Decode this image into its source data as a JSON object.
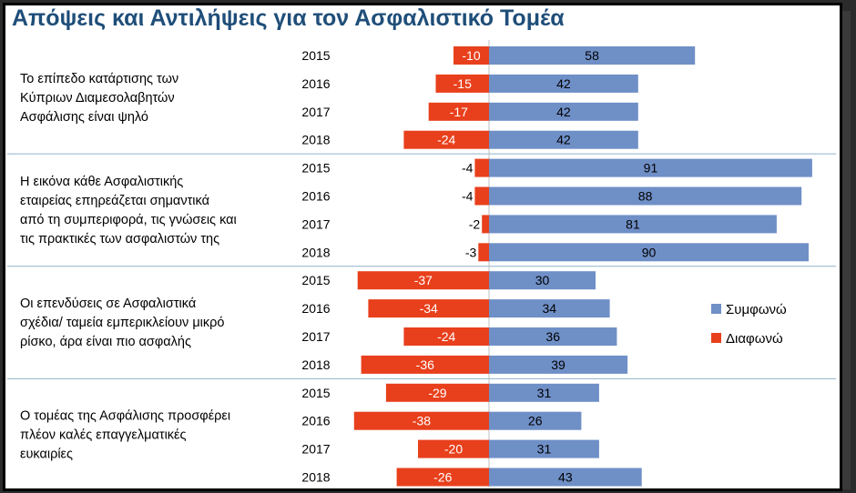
{
  "title": "Απόψεις και Αντιλήψεις για τον Ασφαλιστικό Τομέα",
  "colors": {
    "agree": "#6f8fc7",
    "disagree": "#e8401c",
    "title": "#1f4e79",
    "divider": "#8fb0c9"
  },
  "legend": {
    "agree": "Συμφωνώ",
    "disagree": "Διαφωνώ"
  },
  "chart_data": {
    "type": "bar",
    "orientation": "horizontal-diverging",
    "title": "Απόψεις και Αντιλήψεις για τον Ασφαλιστικό Τομέα",
    "series_names": [
      "Συμφωνώ",
      "Διαφωνώ"
    ],
    "legend_position": "right",
    "xlim": [
      -40,
      100
    ],
    "groups": [
      {
        "question": [
          "Το επίπεδο κατάρτισης των",
          "Κύπριων Διαμεσολαβητών",
          "Ασφάλισης είναι ψηλό"
        ],
        "rows": [
          {
            "year": "2015",
            "agree": 58,
            "disagree": -10
          },
          {
            "year": "2016",
            "agree": 42,
            "disagree": -15
          },
          {
            "year": "2017",
            "agree": 42,
            "disagree": -17
          },
          {
            "year": "2018",
            "agree": 42,
            "disagree": -24
          }
        ]
      },
      {
        "question": [
          "Η εικόνα κάθε Ασφαλιστικής",
          "εταιρείας επηρεάζεται σημαντικά",
          "από τη συμπεριφορά, τις γνώσεις και",
          "τις πρακτικές των ασφαλιστών της"
        ],
        "rows": [
          {
            "year": "2015",
            "agree": 91,
            "disagree": -4
          },
          {
            "year": "2016",
            "agree": 88,
            "disagree": -4
          },
          {
            "year": "2017",
            "agree": 81,
            "disagree": -2
          },
          {
            "year": "2018",
            "agree": 90,
            "disagree": -3
          }
        ]
      },
      {
        "question": [
          "Οι επενδύσεις σε Ασφαλιστικά",
          "σχέδια/ ταμεία εμπερικλείουν μικρό",
          "ρίσκο, άρα είναι πιο ασφαλής"
        ],
        "rows": [
          {
            "year": "2015",
            "agree": 30,
            "disagree": -37
          },
          {
            "year": "2016",
            "agree": 34,
            "disagree": -34
          },
          {
            "year": "2017",
            "agree": 36,
            "disagree": -24
          },
          {
            "year": "2018",
            "agree": 39,
            "disagree": -36
          }
        ]
      },
      {
        "question": [
          "Ο τομέας της Ασφάλισης προσφέρει",
          "πλέον καλές επαγγελματικές",
          "ευκαιρίες"
        ],
        "rows": [
          {
            "year": "2015",
            "agree": 31,
            "disagree": -29
          },
          {
            "year": "2016",
            "agree": 26,
            "disagree": -38
          },
          {
            "year": "2017",
            "agree": 31,
            "disagree": -20
          },
          {
            "year": "2018",
            "agree": 43,
            "disagree": -26
          }
        ]
      }
    ]
  }
}
